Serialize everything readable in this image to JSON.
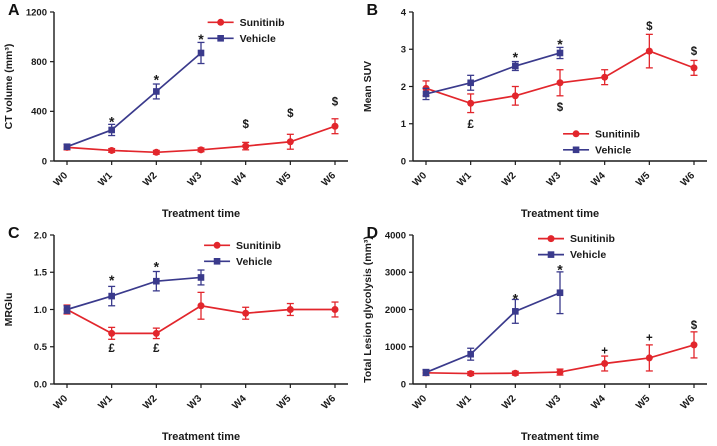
{
  "page": {
    "background": "#ffffff"
  },
  "colors": {
    "sunitinib": "#e2262c",
    "vehicle": "#3a3a8c",
    "axis": "#1a1a1a"
  },
  "categories": [
    "W0",
    "W1",
    "W2",
    "W3",
    "W4",
    "W5",
    "W6"
  ],
  "xlabel": "Treatment time",
  "legend_labels": [
    "Sunitinib",
    "Vehicle"
  ],
  "chart_data": [
    {
      "panel": "A",
      "type": "line",
      "title": "",
      "ylabel": "CT volume (mm³)",
      "ylim": [
        0,
        1200
      ],
      "yticks": [
        0,
        400,
        800,
        1200
      ],
      "ytick_labels": [
        "0",
        "400",
        "800",
        "1200"
      ],
      "grid": false,
      "legend": {
        "position": "top-right",
        "x": 0.58,
        "y": 0.1
      },
      "series": [
        {
          "name": "Sunitinib",
          "color": "sunitinib",
          "marker": "circle",
          "values": [
            110,
            85,
            70,
            90,
            120,
            155,
            280
          ],
          "errors": [
            20,
            15,
            15,
            15,
            30,
            60,
            60
          ]
        },
        {
          "name": "Vehicle",
          "color": "vehicle",
          "marker": "square",
          "values": [
            115,
            250,
            560,
            870,
            null,
            null,
            null
          ],
          "errors": [
            20,
            45,
            60,
            85,
            null,
            null,
            null
          ]
        }
      ],
      "annotations": [
        {
          "symbol": "*",
          "x": 1,
          "y": 350
        },
        {
          "symbol": "*",
          "x": 2,
          "y": 690
        },
        {
          "symbol": "*",
          "x": 3,
          "y": 1015
        },
        {
          "symbol": "$",
          "x": 4,
          "y": 300
        },
        {
          "symbol": "$",
          "x": 5,
          "y": 385
        },
        {
          "symbol": "$",
          "x": 6,
          "y": 480
        }
      ]
    },
    {
      "panel": "B",
      "type": "line",
      "title": "",
      "ylabel": "Mean SUV",
      "ylim": [
        0,
        4
      ],
      "yticks": [
        0,
        1,
        2,
        3,
        4
      ],
      "ytick_labels": [
        "0",
        "1",
        "2",
        "3",
        "4"
      ],
      "grid": false,
      "legend": {
        "position": "bottom-right",
        "x": 0.57,
        "y": 0.6
      },
      "series": [
        {
          "name": "Sunitinib",
          "color": "sunitinib",
          "marker": "circle",
          "values": [
            1.95,
            1.55,
            1.75,
            2.1,
            2.25,
            2.95,
            2.5
          ],
          "errors": [
            0.2,
            0.25,
            0.25,
            0.35,
            0.2,
            0.45,
            0.2
          ]
        },
        {
          "name": "Vehicle",
          "color": "vehicle",
          "marker": "square",
          "values": [
            1.8,
            2.1,
            2.55,
            2.9,
            null,
            null,
            null
          ],
          "errors": [
            0.15,
            0.2,
            0.12,
            0.15,
            null,
            null,
            null
          ]
        }
      ],
      "annotations": [
        {
          "symbol": "£",
          "x": 1,
          "y": 1.0
        },
        {
          "symbol": "*",
          "x": 2,
          "y": 2.9
        },
        {
          "symbol": "*",
          "x": 3,
          "y": 3.25
        },
        {
          "symbol": "$",
          "x": 3,
          "y": 1.45
        },
        {
          "symbol": "$",
          "x": 5,
          "y": 3.62
        },
        {
          "symbol": "$",
          "x": 6,
          "y": 2.95
        }
      ]
    },
    {
      "panel": "C",
      "type": "line",
      "title": "",
      "ylabel": "MRGlu",
      "ylim": [
        0,
        2
      ],
      "yticks": [
        0,
        0.5,
        1.0,
        1.5,
        2.0
      ],
      "ytick_labels": [
        "0.0",
        "0.5",
        "1.0",
        "1.5",
        "2.0"
      ],
      "grid": false,
      "legend": {
        "position": "top-right",
        "x": 0.57,
        "y": 0.1
      },
      "series": [
        {
          "name": "Sunitinib",
          "color": "sunitinib",
          "marker": "circle",
          "values": [
            1.0,
            0.68,
            0.68,
            1.05,
            0.95,
            1.0,
            1.0
          ],
          "errors": [
            0.06,
            0.08,
            0.07,
            0.18,
            0.08,
            0.08,
            0.1
          ]
        },
        {
          "name": "Vehicle",
          "color": "vehicle",
          "marker": "square",
          "values": [
            1.0,
            1.18,
            1.38,
            1.43,
            null,
            null,
            null
          ],
          "errors": [
            0.05,
            0.13,
            0.13,
            0.1,
            null,
            null,
            null
          ]
        }
      ],
      "annotations": [
        {
          "symbol": "*",
          "x": 1,
          "y": 1.45
        },
        {
          "symbol": "*",
          "x": 2,
          "y": 1.63
        },
        {
          "symbol": "£",
          "x": 1,
          "y": 0.48
        },
        {
          "symbol": "£",
          "x": 2,
          "y": 0.48
        }
      ]
    },
    {
      "panel": "D",
      "type": "line",
      "title": "",
      "ylabel": "Total Lesion glycolysis (mm³)",
      "ylim": [
        0,
        4000
      ],
      "yticks": [
        0,
        1000,
        2000,
        3000,
        4000
      ],
      "ytick_labels": [
        "0",
        "1000",
        "2000",
        "3000",
        "4000"
      ],
      "grid": false,
      "legend": {
        "position": "top-right",
        "x": 0.5,
        "y": 0.07
      },
      "series": [
        {
          "name": "Sunitinib",
          "color": "sunitinib",
          "marker": "circle",
          "values": [
            300,
            280,
            290,
            320,
            550,
            700,
            1050
          ],
          "errors": [
            70,
            50,
            50,
            80,
            200,
            350,
            350
          ]
        },
        {
          "name": "Vehicle",
          "color": "vehicle",
          "marker": "square",
          "values": [
            310,
            800,
            1950,
            2450,
            null,
            null,
            null
          ],
          "errors": [
            80,
            160,
            320,
            560,
            null,
            null,
            null
          ]
        }
      ],
      "annotations": [
        {
          "symbol": "*",
          "x": 2,
          "y": 2400
        },
        {
          "symbol": "*",
          "x": 3,
          "y": 3180
        },
        {
          "symbol": "+",
          "x": 4,
          "y": 900
        },
        {
          "symbol": "+",
          "x": 5,
          "y": 1250
        },
        {
          "symbol": "$",
          "x": 6,
          "y": 1580
        }
      ]
    }
  ]
}
